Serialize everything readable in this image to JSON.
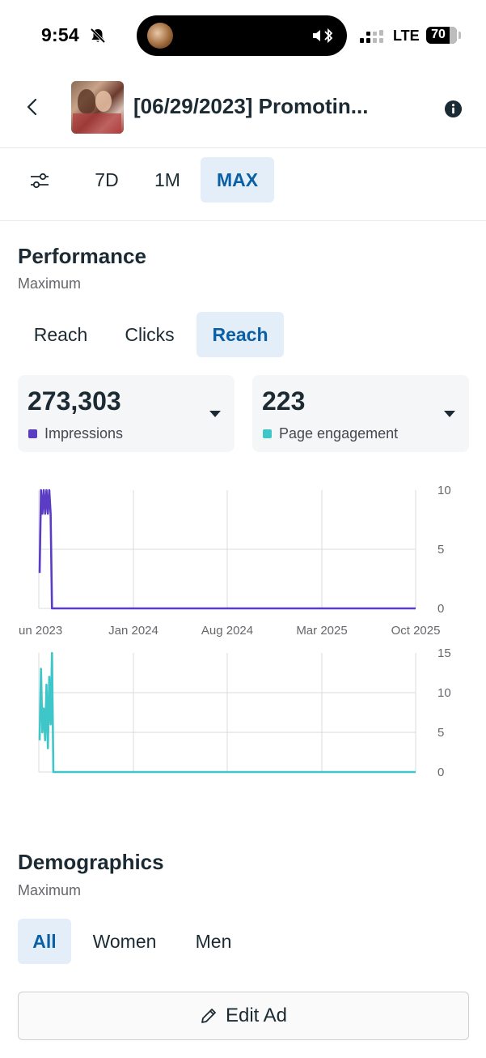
{
  "status_bar": {
    "time": "9:54",
    "network": "LTE",
    "battery": "70"
  },
  "header": {
    "title": "[06/29/2023] Promotin..."
  },
  "range_tabs": [
    {
      "label": "7D",
      "active": false
    },
    {
      "label": "1M",
      "active": false
    },
    {
      "label": "MAX",
      "active": true
    }
  ],
  "performance": {
    "title": "Performance",
    "subtitle": "Maximum",
    "tabs": [
      {
        "label": "Reach",
        "active": false
      },
      {
        "label": "Clicks",
        "active": false
      },
      {
        "label": "Reach",
        "active": true
      }
    ],
    "cards": [
      {
        "value": "273,303",
        "label": "Impressions",
        "color": "#5b3cc4"
      },
      {
        "value": "223",
        "label": "Page engagement",
        "color": "#3ec6c8"
      }
    ]
  },
  "chart_data": [
    {
      "type": "line",
      "x_tick_labels": [
        "un 2023",
        "Jan 2024",
        "Aug 2024",
        "Mar 2025",
        "Oct 2025"
      ],
      "y_tick_labels": [
        "10",
        "5",
        "0"
      ],
      "ylim": [
        0,
        10
      ],
      "grid": true,
      "color": "#5b3cc4",
      "x": [
        "Jun 2023",
        "Jun 2023",
        "Jun 2023",
        "Jun 2023",
        "Jun 2023",
        "Jun 2023",
        "Jul 2023",
        "Jul 2023",
        "Jul 2023",
        "Jul 2023",
        "Oct 2025"
      ],
      "values": [
        3,
        10,
        8,
        10,
        8,
        10,
        8,
        10,
        8,
        0,
        0
      ]
    },
    {
      "type": "line",
      "y_tick_labels": [
        "15",
        "10",
        "5",
        "0"
      ],
      "ylim": [
        0,
        15
      ],
      "grid": true,
      "color": "#3ec6c8",
      "x": [
        "Jun 2023",
        "Jun 2023",
        "Jun 2023",
        "Jun 2023",
        "Jun 2023",
        "Jun 2023",
        "Jun 2023",
        "Jul 2023",
        "Jul 2023",
        "Jul 2023",
        "Jul 2023",
        "Jul 2023",
        "Oct 2025"
      ],
      "values": [
        4,
        13,
        5,
        8,
        4,
        11,
        3,
        12,
        6,
        15,
        0,
        0,
        0
      ]
    }
  ],
  "demographics": {
    "title": "Demographics",
    "subtitle": "Maximum",
    "tabs": [
      {
        "label": "All",
        "active": true
      },
      {
        "label": "Women",
        "active": false
      },
      {
        "label": "Men",
        "active": false
      }
    ]
  },
  "edit_button": {
    "label": "Edit Ad"
  },
  "icons": {
    "back": "chevron-left-icon",
    "info": "info-icon",
    "filter": "sliders-icon",
    "edit": "pencil-icon",
    "bell": "bell-slash-icon"
  }
}
